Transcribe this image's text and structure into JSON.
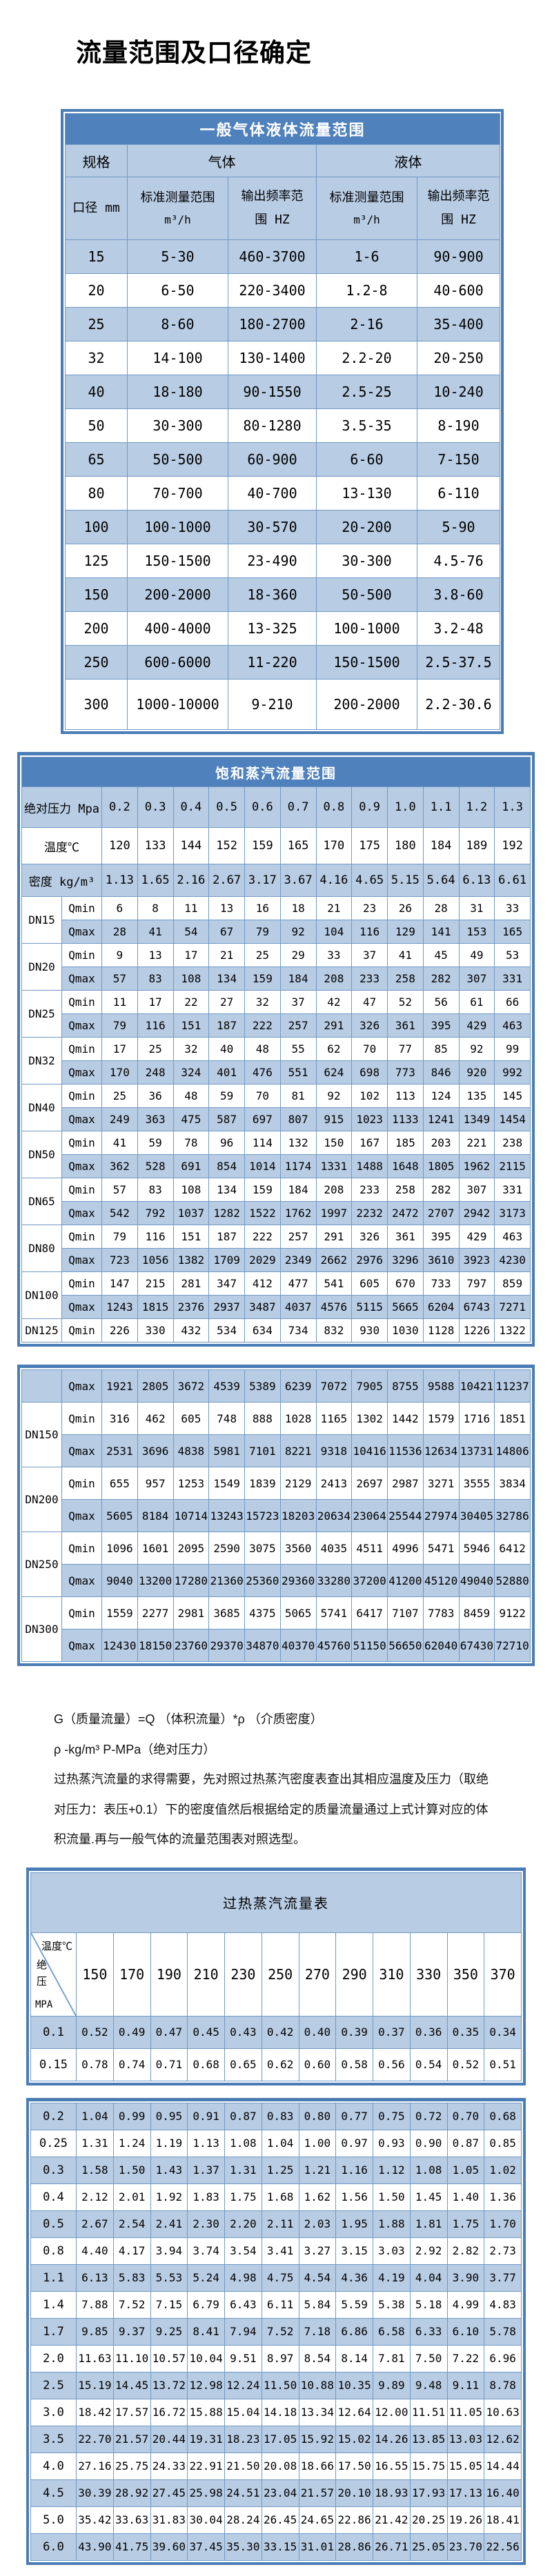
{
  "page": {
    "title": "流量范围及口径确定"
  },
  "table1": {
    "title": "一般气体液体流量范围",
    "spec_header": "规格",
    "gas_header": "气体",
    "liquid_header": "液体",
    "diameter_header": "口径 mm",
    "range_header_line1": "标准测量范围",
    "range_header_unit": "m³/h",
    "freq_header_line1": "输出频率范",
    "freq_header_line2": "围 HZ",
    "rows": [
      {
        "dn": "15",
        "gas_range": "5-30",
        "gas_freq": "460-3700",
        "liq_range": "1-6",
        "liq_freq": "90-900"
      },
      {
        "dn": "20",
        "gas_range": "6-50",
        "gas_freq": "220-3400",
        "liq_range": "1.2-8",
        "liq_freq": "40-600"
      },
      {
        "dn": "25",
        "gas_range": "8-60",
        "gas_freq": "180-2700",
        "liq_range": "2-16",
        "liq_freq": "35-400"
      },
      {
        "dn": "32",
        "gas_range": "14-100",
        "gas_freq": "130-1400",
        "liq_range": "2.2-20",
        "liq_freq": "20-250"
      },
      {
        "dn": "40",
        "gas_range": "18-180",
        "gas_freq": "90-1550",
        "liq_range": "2.5-25",
        "liq_freq": "10-240"
      },
      {
        "dn": "50",
        "gas_range": "30-300",
        "gas_freq": "80-1280",
        "liq_range": "3.5-35",
        "liq_freq": "8-190"
      },
      {
        "dn": "65",
        "gas_range": "50-500",
        "gas_freq": "60-900",
        "liq_range": "6-60",
        "liq_freq": "7-150"
      },
      {
        "dn": "80",
        "gas_range": "70-700",
        "gas_freq": "40-700",
        "liq_range": "13-130",
        "liq_freq": "6-110"
      },
      {
        "dn": "100",
        "gas_range": "100-1000",
        "gas_freq": "30-570",
        "liq_range": "20-200",
        "liq_freq": "5-90"
      },
      {
        "dn": "125",
        "gas_range": "150-1500",
        "gas_freq": "23-490",
        "liq_range": "30-300",
        "liq_freq": "4.5-76"
      },
      {
        "dn": "150",
        "gas_range": "200-2000",
        "gas_freq": "18-360",
        "liq_range": "50-500",
        "liq_freq": "3.8-60"
      },
      {
        "dn": "200",
        "gas_range": "400-4000",
        "gas_freq": "13-325",
        "liq_range": "100-1000",
        "liq_freq": "3.2-48"
      },
      {
        "dn": "250",
        "gas_range": "600-6000",
        "gas_freq": "11-220",
        "liq_range": "150-1500",
        "liq_freq": "2.5-37.5"
      },
      {
        "dn": "300",
        "gas_range": "1000-10000",
        "gas_freq": "9-210",
        "liq_range": "200-2000",
        "liq_freq": "2.2-30.6"
      }
    ]
  },
  "table2": {
    "title": "饱和蒸汽流量范围",
    "pressure_label": "绝对压力 Mpa",
    "temp_label": "温度℃",
    "density_label": "密度 kg/m³",
    "qmin_label": "Qmin",
    "qmax_label": "Qmax",
    "pressures": [
      "0.2",
      "0.3",
      "0.4",
      "0.5",
      "0.6",
      "0.7",
      "0.8",
      "0.9",
      "1.0",
      "1.1",
      "1.2",
      "1.3"
    ],
    "temps": [
      120,
      133,
      144,
      152,
      159,
      165,
      170,
      175,
      180,
      184,
      189,
      192
    ],
    "densities": [
      "1.13",
      "1.65",
      "2.16",
      "2.67",
      "3.17",
      "3.67",
      "4.16",
      "4.65",
      "5.15",
      "5.64",
      "6.13",
      "6.61"
    ],
    "block1_rows": [
      {
        "dn": "DN15",
        "qmin": [
          6,
          8,
          11,
          13,
          16,
          18,
          21,
          23,
          26,
          28,
          31,
          33
        ],
        "qmax": [
          28,
          41,
          54,
          67,
          79,
          92,
          104,
          116,
          129,
          141,
          153,
          165
        ]
      },
      {
        "dn": "DN20",
        "qmin": [
          9,
          13,
          17,
          21,
          25,
          29,
          33,
          37,
          41,
          45,
          49,
          53
        ],
        "qmax": [
          57,
          83,
          108,
          134,
          159,
          184,
          208,
          233,
          258,
          282,
          307,
          331
        ]
      },
      {
        "dn": "DN25",
        "qmin": [
          11,
          17,
          22,
          27,
          32,
          37,
          42,
          47,
          52,
          56,
          61,
          66
        ],
        "qmax": [
          79,
          116,
          151,
          187,
          222,
          257,
          291,
          326,
          361,
          395,
          429,
          463
        ]
      },
      {
        "dn": "DN32",
        "qmin": [
          17,
          25,
          32,
          40,
          48,
          55,
          62,
          70,
          77,
          85,
          92,
          99
        ],
        "qmax": [
          170,
          248,
          324,
          401,
          476,
          551,
          624,
          698,
          773,
          846,
          920,
          992
        ]
      },
      {
        "dn": "DN40",
        "qmin": [
          25,
          36,
          48,
          59,
          70,
          81,
          92,
          102,
          113,
          124,
          135,
          145
        ],
        "qmax": [
          249,
          363,
          475,
          587,
          697,
          807,
          915,
          1023,
          1133,
          1241,
          1349,
          1454
        ]
      },
      {
        "dn": "DN50",
        "qmin": [
          41,
          59,
          78,
          96,
          114,
          132,
          150,
          167,
          185,
          203,
          221,
          238
        ],
        "qmax": [
          362,
          528,
          691,
          854,
          1014,
          1174,
          1331,
          1488,
          1648,
          1805,
          1962,
          2115
        ]
      },
      {
        "dn": "DN65",
        "qmin": [
          57,
          83,
          108,
          134,
          159,
          184,
          208,
          233,
          258,
          282,
          307,
          331
        ],
        "qmax": [
          542,
          792,
          1037,
          1282,
          1522,
          1762,
          1997,
          2232,
          2472,
          2707,
          2942,
          3173
        ]
      },
      {
        "dn": "DN80",
        "qmin": [
          79,
          116,
          151,
          187,
          222,
          257,
          291,
          326,
          361,
          395,
          429,
          463
        ],
        "qmax": [
          723,
          1056,
          1382,
          1709,
          2029,
          2349,
          2662,
          2976,
          3296,
          3610,
          3923,
          4230
        ]
      },
      {
        "dn": "DN100",
        "qmin": [
          147,
          215,
          281,
          347,
          412,
          477,
          541,
          605,
          670,
          733,
          797,
          859
        ],
        "qmax": [
          1243,
          1815,
          2376,
          2937,
          3487,
          4037,
          4576,
          5115,
          5665,
          6204,
          6743,
          7271
        ]
      },
      {
        "dn": "DN125",
        "qmin": [
          226,
          330,
          432,
          534,
          634,
          734,
          832,
          930,
          1030,
          1128,
          1226,
          1322
        ]
      }
    ],
    "block2_rows": [
      {
        "dn": "",
        "qmax": [
          1921,
          2805,
          3672,
          4539,
          5389,
          6239,
          7072,
          7905,
          8755,
          9588,
          10421,
          11237
        ]
      },
      {
        "dn": "DN150",
        "qmin": [
          316,
          462,
          605,
          748,
          888,
          1028,
          1165,
          1302,
          1442,
          1579,
          1716,
          1851
        ],
        "qmax": [
          2531,
          3696,
          4838,
          5981,
          7101,
          8221,
          9318,
          10416,
          11536,
          12634,
          13731,
          14806
        ]
      },
      {
        "dn": "DN200",
        "qmin": [
          655,
          957,
          1253,
          1549,
          1839,
          2129,
          2413,
          2697,
          2987,
          3271,
          3555,
          3834
        ],
        "qmax": [
          5605,
          8184,
          10714,
          13243,
          15723,
          18203,
          20634,
          23064,
          25544,
          27974,
          30405,
          32786
        ]
      },
      {
        "dn": "DN250",
        "qmin": [
          1096,
          1601,
          2095,
          2590,
          3075,
          3560,
          4035,
          4511,
          4996,
          5471,
          5946,
          6412
        ],
        "qmax": [
          9040,
          13200,
          17280,
          21360,
          25360,
          29360,
          33280,
          37200,
          41200,
          45120,
          49040,
          52880
        ]
      },
      {
        "dn": "DN300",
        "qmin": [
          1559,
          2277,
          2981,
          3685,
          4375,
          5065,
          5741,
          6417,
          7107,
          7783,
          8459,
          9122
        ],
        "qmax": [
          12430,
          18150,
          23760,
          29370,
          34870,
          40370,
          45760,
          51150,
          56650,
          62040,
          67430,
          72710
        ]
      }
    ]
  },
  "notes": {
    "lines": [
      "G（质量流量）=Q （体积流量）*ρ （介质密度）",
      "ρ -kg/m³ P-MPa（绝对压力）",
      "过热蒸汽流量的求得需要，先对照过热蒸汽密度表查出其相应温度及压力（取绝",
      "对压力：表压+0.1）下的密度值然后根据给定的质量流量通过上式计算对应的体",
      "积流量.再与一般气体的流量范围表对照选型。"
    ]
  },
  "table3": {
    "title": "过热蒸汽流量表",
    "corner_temp": "温度℃",
    "corner_press": "绝压",
    "corner_unit": "MPA",
    "temps": [
      "150",
      "170",
      "190",
      "210",
      "230",
      "250",
      "270",
      "290",
      "310",
      "330",
      "350",
      "370"
    ],
    "block1_rows": [
      {
        "p": "0.1",
        "values": [
          "0.52",
          "0.49",
          "0.47",
          "0.45",
          "0.43",
          "0.42",
          "0.40",
          "0.39",
          "0.37",
          "0.36",
          "0.35",
          "0.34"
        ]
      },
      {
        "p": "0.15",
        "values": [
          "0.78",
          "0.74",
          "0.71",
          "0.68",
          "0.65",
          "0.62",
          "0.60",
          "0.58",
          "0.56",
          "0.54",
          "0.52",
          "0.51"
        ]
      }
    ],
    "block2_rows": [
      {
        "p": "0.2",
        "values": [
          "1.04",
          "0.99",
          "0.95",
          "0.91",
          "0.87",
          "0.83",
          "0.80",
          "0.77",
          "0.75",
          "0.72",
          "0.70",
          "0.68"
        ]
      },
      {
        "p": "0.25",
        "values": [
          "1.31",
          "1.24",
          "1.19",
          "1.13",
          "1.08",
          "1.04",
          "1.00",
          "0.97",
          "0.93",
          "0.90",
          "0.87",
          "0.85"
        ]
      },
      {
        "p": "0.3",
        "values": [
          "1.58",
          "1.50",
          "1.43",
          "1.37",
          "1.31",
          "1.25",
          "1.21",
          "1.16",
          "1.12",
          "1.08",
          "1.05",
          "1.02"
        ]
      },
      {
        "p": "0.4",
        "values": [
          "2.12",
          "2.01",
          "1.92",
          "1.83",
          "1.75",
          "1.68",
          "1.62",
          "1.56",
          "1.50",
          "1.45",
          "1.40",
          "1.36"
        ]
      },
      {
        "p": "0.5",
        "values": [
          "2.67",
          "2.54",
          "2.41",
          "2.30",
          "2.20",
          "2.11",
          "2.03",
          "1.95",
          "1.88",
          "1.81",
          "1.75",
          "1.70"
        ]
      },
      {
        "p": "0.8",
        "values": [
          "4.40",
          "4.17",
          "3.94",
          "3.74",
          "3.54",
          "3.41",
          "3.27",
          "3.15",
          "3.03",
          "2.92",
          "2.82",
          "2.73"
        ]
      },
      {
        "p": "1.1",
        "values": [
          "6.13",
          "5.83",
          "5.53",
          "5.24",
          "4.98",
          "4.75",
          "4.54",
          "4.36",
          "4.19",
          "4.04",
          "3.90",
          "3.77"
        ]
      },
      {
        "p": "1.4",
        "values": [
          "7.88",
          "7.52",
          "7.15",
          "6.79",
          "6.43",
          "6.11",
          "5.84",
          "5.59",
          "5.38",
          "5.18",
          "4.99",
          "4.83"
        ]
      },
      {
        "p": "1.7",
        "values": [
          "9.85",
          "9.37",
          "9.25",
          "8.41",
          "7.94",
          "7.52",
          "7.18",
          "6.86",
          "6.58",
          "6.33",
          "6.10",
          "5.78"
        ]
      },
      {
        "p": "2.0",
        "values": [
          "11.63",
          "11.10",
          "10.57",
          "10.04",
          "9.51",
          "8.97",
          "8.54",
          "8.14",
          "7.81",
          "7.50",
          "7.22",
          "6.96"
        ]
      },
      {
        "p": "2.5",
        "values": [
          "15.19",
          "14.45",
          "13.72",
          "12.98",
          "12.24",
          "11.50",
          "10.88",
          "10.35",
          "9.89",
          "9.48",
          "9.11",
          "8.78"
        ]
      },
      {
        "p": "3.0",
        "values": [
          "18.42",
          "17.57",
          "16.72",
          "15.88",
          "15.04",
          "14.18",
          "13.34",
          "12.64",
          "12.00",
          "11.51",
          "11.05",
          "10.63"
        ]
      },
      {
        "p": "3.5",
        "values": [
          "22.70",
          "21.57",
          "20.44",
          "19.31",
          "18.23",
          "17.05",
          "15.92",
          "15.02",
          "14.26",
          "13.85",
          "13.03",
          "12.62"
        ]
      },
      {
        "p": "4.0",
        "values": [
          "27.16",
          "25.75",
          "24.33",
          "22.91",
          "21.50",
          "20.08",
          "18.66",
          "17.50",
          "16.55",
          "15.75",
          "15.05",
          "14.44"
        ]
      },
      {
        "p": "4.5",
        "values": [
          "30.39",
          "28.92",
          "27.45",
          "25.98",
          "24.51",
          "23.04",
          "21.57",
          "20.10",
          "18.93",
          "17.93",
          "17.13",
          "16.40"
        ]
      },
      {
        "p": "5.0",
        "values": [
          "35.42",
          "33.63",
          "31.83",
          "30.04",
          "28.24",
          "26.45",
          "24.65",
          "22.86",
          "21.42",
          "20.25",
          "19.26",
          "18.41"
        ]
      },
      {
        "p": "6.0",
        "values": [
          "43.90",
          "41.75",
          "39.60",
          "37.45",
          "35.30",
          "33.15",
          "31.01",
          "28.86",
          "26.71",
          "25.05",
          "23.70",
          "22.56"
        ]
      }
    ]
  }
}
